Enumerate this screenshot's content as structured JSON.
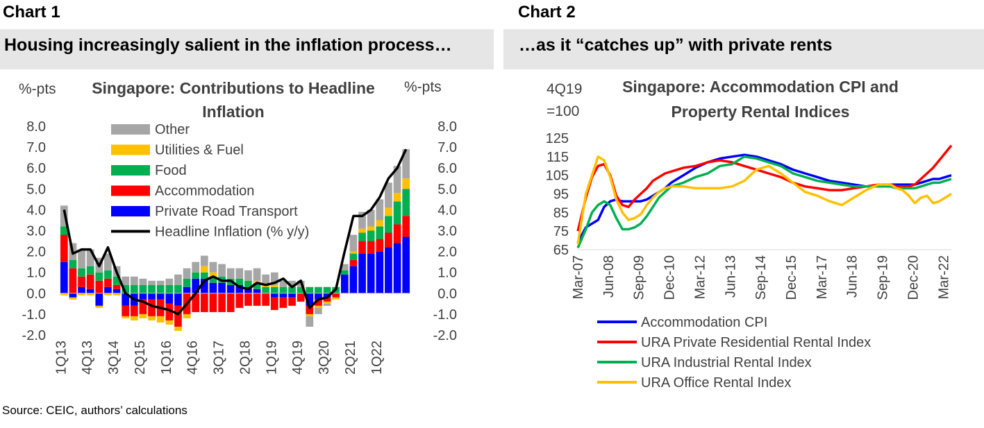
{
  "chart1": {
    "label": "Chart 1",
    "headline": "Housing increasingly salient in the inflation process…",
    "title_line1": "Singapore: Contributions to Headline",
    "title_line2": "Inflation",
    "left_unit": "%-pts",
    "right_unit": "%-pts"
  },
  "chart2": {
    "label": "Chart 2",
    "headline": "…as it “catches up” with private rents",
    "title_line1": "Singapore: Accommodation CPI and",
    "title_line2": "Property Rental Indices",
    "unit_line1": "4Q19",
    "unit_line2": "=100"
  },
  "source": "Source: CEIC, authors’ calculations",
  "colors": {
    "other": "#a6a6a6",
    "utilities": "#ffc000",
    "food": "#00b050",
    "accommodation": "#ff0000",
    "transport": "#0000ff",
    "headline": "#000000",
    "accommodation_cpi": "#0000ff",
    "residential": "#ff0000",
    "industrial": "#00b050",
    "office": "#ffc000"
  },
  "chart_data": [
    {
      "type": "bar",
      "stacked": true,
      "title": "Singapore: Contributions to Headline Inflation",
      "ylabel": "%-pts",
      "ylim": [
        -2.0,
        8.0
      ],
      "yticks": [
        "8.0",
        "7.0",
        "6.0",
        "5.0",
        "4.0",
        "3.0",
        "2.0",
        "1.0",
        "0.0",
        "-1.0",
        "-2.0"
      ],
      "ytick_values": [
        8,
        7,
        6,
        5,
        4,
        3,
        2,
        1,
        0,
        -1,
        -2
      ],
      "x_labels": [
        "1Q13",
        "4Q13",
        "3Q14",
        "2Q15",
        "1Q16",
        "4Q16",
        "3Q17",
        "2Q18",
        "1Q19",
        "4Q19",
        "3Q20",
        "2Q21",
        "1Q22"
      ],
      "x_label_index": [
        0,
        3,
        6,
        9,
        12,
        15,
        18,
        21,
        24,
        27,
        30,
        33,
        36
      ],
      "series": [
        {
          "key": "transport",
          "name": "Private Road Transport",
          "values": [
            1.5,
            -0.2,
            0.3,
            0.2,
            -0.6,
            0.3,
            0.2,
            -0.6,
            -0.6,
            -0.3,
            -0.3,
            -0.3,
            -0.5,
            -0.6,
            0.3,
            0.7,
            0.7,
            0.5,
            0.5,
            0.4,
            0.4,
            0.3,
            0.2,
            0.0,
            -0.2,
            -0.2,
            -0.2,
            0.0,
            -0.6,
            -0.3,
            -0.2,
            0.0,
            0.9,
            1.3,
            1.9,
            1.9,
            2.0,
            2.2,
            2.4,
            2.7
          ]
        },
        {
          "key": "accommodation",
          "name": "Accommodation",
          "values": [
            1.3,
            1.2,
            0.5,
            0.7,
            0.6,
            0.4,
            0.2,
            -0.5,
            -0.5,
            -0.7,
            -0.8,
            -0.8,
            -0.8,
            -1.0,
            -1.0,
            -0.9,
            -0.9,
            -0.9,
            -0.9,
            -0.9,
            -0.7,
            -0.6,
            -0.6,
            -0.6,
            -0.6,
            -0.5,
            -0.4,
            -0.4,
            -0.4,
            -0.3,
            -0.2,
            -0.2,
            0.0,
            0.3,
            0.6,
            0.6,
            0.6,
            0.7,
            0.9,
            1.0
          ]
        },
        {
          "key": "food",
          "name": "Food",
          "values": [
            0.4,
            0.4,
            0.4,
            0.4,
            0.4,
            0.4,
            0.4,
            0.4,
            0.4,
            0.4,
            0.4,
            0.4,
            0.4,
            0.4,
            0.4,
            0.3,
            0.3,
            0.3,
            0.3,
            0.3,
            0.3,
            0.3,
            0.3,
            0.3,
            0.3,
            0.3,
            0.3,
            0.3,
            0.3,
            0.3,
            0.3,
            0.3,
            0.2,
            0.3,
            0.4,
            0.5,
            0.6,
            0.8,
            1.1,
            1.3
          ]
        },
        {
          "key": "utilities",
          "name": "Utilities & Fuel",
          "values": [
            -0.1,
            -0.1,
            -0.1,
            -0.1,
            -0.1,
            -0.1,
            -0.1,
            -0.1,
            -0.2,
            -0.2,
            -0.2,
            -0.3,
            -0.2,
            -0.2,
            -0.2,
            0.0,
            0.3,
            0.2,
            0.0,
            0.0,
            0.0,
            0.0,
            0.1,
            0.1,
            0.1,
            0.0,
            0.0,
            0.0,
            -0.1,
            -0.1,
            -0.1,
            -0.1,
            0.0,
            0.1,
            0.2,
            0.2,
            0.3,
            0.4,
            0.4,
            0.5
          ]
        },
        {
          "key": "other",
          "name": "Other",
          "values": [
            1.0,
            0.8,
            0.9,
            0.8,
            0.7,
            0.8,
            0.5,
            0.4,
            0.4,
            0.3,
            0.2,
            0.2,
            0.3,
            0.5,
            0.5,
            0.5,
            0.5,
            0.5,
            0.6,
            0.5,
            0.5,
            0.5,
            0.6,
            0.5,
            0.6,
            0.3,
            0.3,
            0.3,
            -0.5,
            -0.3,
            -0.1,
            0.0,
            0.3,
            0.8,
            0.8,
            0.8,
            1.0,
            1.2,
            1.3,
            1.4
          ]
        },
        {
          "key": "headline",
          "name": "Headline Inflation (% y/y)",
          "kind": "line",
          "values": [
            4.0,
            1.9,
            2.1,
            2.1,
            1.3,
            2.2,
            1.0,
            0.0,
            -0.3,
            -0.4,
            -0.6,
            -0.7,
            -0.8,
            -1.0,
            -0.5,
            0.0,
            0.6,
            0.8,
            0.6,
            0.6,
            0.3,
            0.2,
            0.5,
            0.4,
            0.5,
            0.7,
            0.3,
            0.6,
            -0.7,
            -0.3,
            -0.2,
            0.2,
            2.0,
            3.7,
            3.7,
            4.0,
            4.6,
            5.5,
            6.0,
            6.9
          ]
        }
      ],
      "legend_order": [
        "other",
        "utilities",
        "food",
        "accommodation",
        "transport",
        "headline"
      ]
    },
    {
      "type": "line",
      "title": "Singapore: Accommodation CPI and Property Rental Indices",
      "ylabel": "4Q19 =100",
      "ylim": [
        65,
        125
      ],
      "yticks": [
        "125",
        "115",
        "105",
        "95",
        "85",
        "75",
        "65"
      ],
      "ytick_values": [
        125,
        115,
        105,
        95,
        85,
        75,
        65
      ],
      "x_range": [
        2007.167,
        2022.5
      ],
      "x_labels": [
        "Mar-07",
        "Jun-08",
        "Sep-09",
        "Dec-10",
        "Mar-12",
        "Jun-13",
        "Sep-14",
        "Dec-15",
        "Mar-17",
        "Jun-18",
        "Sep-19",
        "Dec-20",
        "Mar-22"
      ],
      "x_label_values": [
        2007.167,
        2008.417,
        2009.667,
        2010.917,
        2012.167,
        2013.417,
        2014.667,
        2015.917,
        2017.167,
        2018.417,
        2019.667,
        2020.917,
        2022.167
      ],
      "x": [
        2007.17,
        2007.5,
        2007.75,
        2008.0,
        2008.25,
        2008.5,
        2008.75,
        2009.0,
        2009.25,
        2009.5,
        2009.75,
        2010.0,
        2010.25,
        2010.5,
        2010.75,
        2011.0,
        2011.5,
        2012.0,
        2012.5,
        2013.0,
        2013.5,
        2014.0,
        2014.5,
        2015.0,
        2015.5,
        2016.0,
        2016.5,
        2017.0,
        2017.5,
        2018.0,
        2018.5,
        2019.0,
        2019.5,
        2020.0,
        2020.25,
        2020.5,
        2020.75,
        2021.0,
        2021.25,
        2021.5,
        2021.75,
        2022.0,
        2022.25,
        2022.5
      ],
      "series": [
        {
          "key": "accommodation_cpi",
          "name": "Accommodation CPI",
          "values": [
            69,
            77,
            79,
            81,
            88,
            91,
            92,
            91,
            91,
            91,
            91,
            92,
            94,
            96,
            98,
            101,
            105,
            109,
            112,
            114,
            115,
            116,
            115,
            113,
            111,
            108,
            106,
            104,
            102,
            101,
            100,
            99,
            99,
            100,
            100,
            100,
            100,
            100,
            101,
            102,
            103,
            103,
            104,
            105
          ]
        },
        {
          "key": "residential",
          "name": "URA Private Residential Rental Index",
          "values": [
            75,
            93,
            104,
            110,
            111,
            105,
            94,
            89,
            88,
            92,
            95,
            98,
            102,
            104,
            106,
            107,
            109,
            110,
            112,
            113,
            112,
            110,
            108,
            106,
            104,
            101,
            99,
            98,
            97,
            97,
            98,
            99,
            100,
            100,
            99,
            99,
            99,
            100,
            103,
            106,
            109,
            113,
            117,
            121
          ]
        },
        {
          "key": "industrial",
          "name": "URA Industrial Rental Index",
          "values": [
            66,
            76,
            85,
            89,
            91,
            89,
            82,
            76,
            76,
            77,
            79,
            83,
            88,
            93,
            96,
            99,
            101,
            104,
            106,
            110,
            111,
            115,
            114,
            112,
            110,
            106,
            104,
            102,
            101,
            100,
            99,
            99,
            99,
            99,
            98,
            98,
            98,
            98,
            99,
            100,
            101,
            101,
            102,
            103
          ]
        },
        {
          "key": "office",
          "name": "URA Office Rental Index",
          "values": [
            68,
            95,
            105,
            115,
            113,
            104,
            92,
            85,
            81,
            82,
            84,
            89,
            93,
            96,
            98,
            99,
            99,
            98,
            98,
            98,
            99,
            102,
            108,
            110,
            106,
            101,
            96,
            94,
            91,
            89,
            93,
            97,
            100,
            100,
            98,
            97,
            94,
            90,
            93,
            94,
            90,
            91,
            93,
            95
          ]
        }
      ]
    }
  ]
}
